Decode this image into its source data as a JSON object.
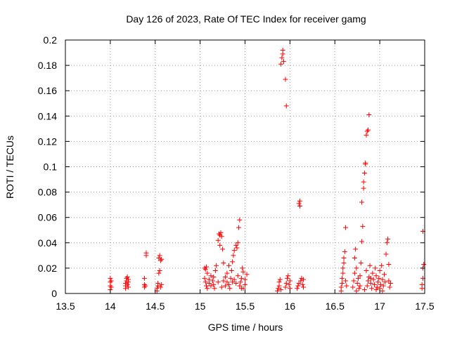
{
  "chart_data": {
    "type": "scatter",
    "title": "Day 126 of 2023, Rate Of TEC Index for receiver gamg",
    "xlabel": "GPS time / hours",
    "ylabel": "ROTI / TECUs",
    "xlim": [
      13.5,
      17.5
    ],
    "ylim": [
      0,
      0.2
    ],
    "x_ticks": [
      13.5,
      14,
      14.5,
      15,
      15.5,
      16,
      16.5,
      17,
      17.5
    ],
    "x_tick_labels": [
      "13.5",
      "14",
      "14.5",
      "15",
      "15.5",
      "16",
      "16.5",
      "17",
      "17.5"
    ],
    "y_ticks": [
      0,
      0.02,
      0.04,
      0.06,
      0.08,
      0.1,
      0.12,
      0.14,
      0.16,
      0.18,
      0.2
    ],
    "y_tick_labels": [
      "0",
      "0.02",
      "0.04",
      "0.06",
      "0.08",
      "0.1",
      "0.12",
      "0.14",
      "0.16",
      "0.18",
      "0.2"
    ],
    "grid": true,
    "marker": "+",
    "color": "#ff0000",
    "series": [
      {
        "name": "ROTI",
        "points": [
          [
            14.0,
            0.003
          ],
          [
            14.0,
            0.006
          ],
          [
            14.0,
            0.009
          ],
          [
            14.0,
            0.012
          ],
          [
            14.01,
            0.005
          ],
          [
            14.01,
            0.01
          ],
          [
            14.17,
            0.004
          ],
          [
            14.17,
            0.006
          ],
          [
            14.17,
            0.008
          ],
          [
            14.18,
            0.01
          ],
          [
            14.18,
            0.012
          ],
          [
            14.19,
            0.007
          ],
          [
            14.19,
            0.013
          ],
          [
            14.2,
            0.005
          ],
          [
            14.2,
            0.009
          ],
          [
            14.2,
            0.011
          ],
          [
            14.38,
            0.005
          ],
          [
            14.38,
            0.007
          ],
          [
            14.38,
            0.012
          ],
          [
            14.39,
            0.006
          ],
          [
            14.4,
            0.03
          ],
          [
            14.4,
            0.032
          ],
          [
            14.52,
            0.002
          ],
          [
            14.52,
            0.004
          ],
          [
            14.53,
            0.006
          ],
          [
            14.53,
            0.008
          ],
          [
            14.54,
            0.016
          ],
          [
            14.54,
            0.028
          ],
          [
            14.55,
            0.018
          ],
          [
            14.55,
            0.03
          ],
          [
            14.56,
            0.026
          ],
          [
            14.56,
            0.005
          ],
          [
            14.57,
            0.007
          ],
          [
            14.57,
            0.027
          ],
          [
            15.05,
            0.02
          ],
          [
            15.06,
            0.019
          ],
          [
            15.07,
            0.021
          ],
          [
            15.08,
            0.016
          ],
          [
            15.05,
            0.012
          ],
          [
            15.06,
            0.009
          ],
          [
            15.07,
            0.006
          ],
          [
            15.08,
            0.004
          ],
          [
            15.1,
            0.008
          ],
          [
            15.1,
            0.011
          ],
          [
            15.12,
            0.006
          ],
          [
            15.12,
            0.014
          ],
          [
            15.14,
            0.01
          ],
          [
            15.15,
            0.007
          ],
          [
            15.16,
            0.004
          ],
          [
            15.17,
            0.018
          ],
          [
            15.18,
            0.022
          ],
          [
            15.2,
            0.042
          ],
          [
            15.21,
            0.047
          ],
          [
            15.22,
            0.046
          ],
          [
            15.22,
            0.038
          ],
          [
            15.23,
            0.048
          ],
          [
            15.24,
            0.045
          ],
          [
            15.25,
            0.035
          ],
          [
            15.26,
            0.024
          ],
          [
            15.26,
            0.01
          ],
          [
            15.28,
            0.006
          ],
          [
            15.28,
            0.013
          ],
          [
            15.3,
            0.009
          ],
          [
            15.3,
            0.016
          ],
          [
            15.32,
            0.022
          ],
          [
            15.32,
            0.007
          ],
          [
            15.34,
            0.012
          ],
          [
            15.35,
            0.018
          ],
          [
            15.36,
            0.025
          ],
          [
            15.37,
            0.03
          ],
          [
            15.38,
            0.034
          ],
          [
            15.38,
            0.011
          ],
          [
            15.4,
            0.038
          ],
          [
            15.4,
            0.008
          ],
          [
            15.41,
            0.036
          ],
          [
            15.42,
            0.04
          ],
          [
            15.42,
            0.014
          ],
          [
            15.43,
            0.052
          ],
          [
            15.44,
            0.058
          ],
          [
            15.44,
            0.006
          ],
          [
            15.45,
            0.009
          ],
          [
            15.46,
            0.012
          ],
          [
            15.47,
            0.02
          ],
          [
            15.48,
            0.017
          ],
          [
            15.48,
            0.004
          ],
          [
            15.5,
            0.007
          ],
          [
            15.5,
            0.011
          ],
          [
            15.52,
            0.015
          ],
          [
            15.15,
            0.013
          ],
          [
            15.2,
            0.009
          ],
          [
            15.24,
            0.005
          ],
          [
            15.33,
            0.004
          ],
          [
            15.36,
            0.009
          ],
          [
            15.46,
            0.004
          ],
          [
            15.86,
            0.002
          ],
          [
            15.87,
            0.004
          ],
          [
            15.88,
            0.006
          ],
          [
            15.88,
            0.009
          ],
          [
            15.89,
            0.011
          ],
          [
            15.9,
            0.003
          ],
          [
            15.9,
            0.181
          ],
          [
            15.91,
            0.186
          ],
          [
            15.92,
            0.189
          ],
          [
            15.92,
            0.192
          ],
          [
            15.93,
            0.183
          ],
          [
            15.95,
            0.169
          ],
          [
            15.96,
            0.148
          ],
          [
            15.95,
            0.005
          ],
          [
            15.96,
            0.008
          ],
          [
            15.97,
            0.012
          ],
          [
            15.98,
            0.014
          ],
          [
            15.99,
            0.007
          ],
          [
            16.0,
            0.004
          ],
          [
            16.0,
            0.01
          ],
          [
            16.08,
            0.004
          ],
          [
            16.09,
            0.006
          ],
          [
            16.1,
            0.008
          ],
          [
            16.1,
            0.071
          ],
          [
            16.11,
            0.073
          ],
          [
            16.11,
            0.069
          ],
          [
            16.12,
            0.01
          ],
          [
            16.13,
            0.012
          ],
          [
            16.14,
            0.007
          ],
          [
            16.15,
            0.005
          ],
          [
            16.15,
            0.011
          ],
          [
            16.57,
            0.002
          ],
          [
            16.57,
            0.005
          ],
          [
            16.58,
            0.008
          ],
          [
            16.58,
            0.012
          ],
          [
            16.59,
            0.016
          ],
          [
            16.59,
            0.02
          ],
          [
            16.6,
            0.024
          ],
          [
            16.6,
            0.028
          ],
          [
            16.61,
            0.033
          ],
          [
            16.62,
            0.052
          ],
          [
            16.62,
            0.01
          ],
          [
            16.63,
            0.006
          ],
          [
            16.7,
            0.005
          ],
          [
            16.71,
            0.01
          ],
          [
            16.72,
            0.016
          ],
          [
            16.72,
            0.028
          ],
          [
            16.73,
            0.035
          ],
          [
            16.74,
            0.02
          ],
          [
            16.75,
            0.008
          ],
          [
            16.76,
            0.012
          ],
          [
            16.77,
            0.004
          ],
          [
            16.78,
            0.014
          ],
          [
            16.79,
            0.024
          ],
          [
            16.8,
            0.041
          ],
          [
            16.8,
            0.072
          ],
          [
            16.81,
            0.053
          ],
          [
            16.82,
            0.083
          ],
          [
            16.82,
            0.088
          ],
          [
            16.83,
            0.095
          ],
          [
            16.84,
            0.102
          ],
          [
            16.84,
            0.103
          ],
          [
            16.85,
            0.125
          ],
          [
            16.86,
            0.128
          ],
          [
            16.87,
            0.129
          ],
          [
            16.88,
            0.141
          ],
          [
            16.85,
            0.018
          ],
          [
            16.86,
            0.006
          ],
          [
            16.87,
            0.01
          ],
          [
            16.88,
            0.013
          ],
          [
            16.89,
            0.022
          ],
          [
            16.9,
            0.008
          ],
          [
            16.91,
            0.004
          ],
          [
            16.92,
            0.016
          ],
          [
            16.93,
            0.011
          ],
          [
            16.94,
            0.007
          ],
          [
            16.95,
            0.02
          ],
          [
            16.96,
            0.014
          ],
          [
            16.97,
            0.005
          ],
          [
            16.98,
            0.009
          ],
          [
            16.99,
            0.012
          ],
          [
            17.0,
            0.018
          ],
          [
            17.0,
            0.004
          ],
          [
            17.01,
            0.007
          ],
          [
            17.02,
            0.022
          ],
          [
            17.03,
            0.011
          ],
          [
            17.04,
            0.006
          ],
          [
            17.05,
            0.015
          ],
          [
            17.06,
            0.009
          ],
          [
            17.07,
            0.031
          ],
          [
            17.08,
            0.04
          ],
          [
            17.09,
            0.043
          ],
          [
            17.1,
            0.023
          ],
          [
            17.1,
            0.01
          ],
          [
            17.11,
            0.005
          ],
          [
            17.12,
            0.008
          ],
          [
            16.74,
            0.002
          ],
          [
            16.78,
            0.006
          ],
          [
            16.83,
            0.003
          ],
          [
            16.9,
            0.012
          ],
          [
            16.96,
            0.003
          ],
          [
            17.03,
            0.002
          ],
          [
            17.47,
            0.004
          ],
          [
            17.47,
            0.007
          ],
          [
            17.48,
            0.012
          ],
          [
            17.48,
            0.02
          ],
          [
            17.49,
            0.023
          ],
          [
            17.48,
            0.049
          ]
        ]
      }
    ]
  }
}
